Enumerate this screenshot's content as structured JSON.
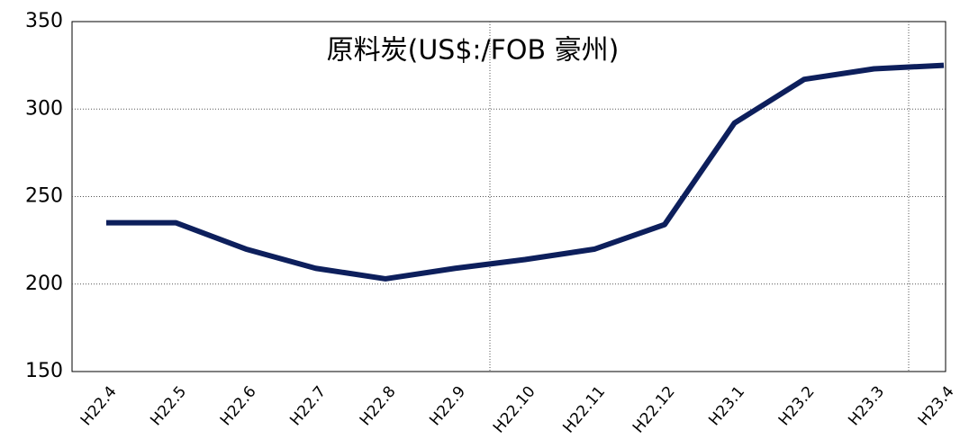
{
  "chart_data": {
    "type": "line",
    "title": "原料炭(US$:/FOB 豪州)",
    "categories": [
      "H22.4",
      "H22.5",
      "H22.6",
      "H22.7",
      "H22.8",
      "H22.9",
      "H22.10",
      "H22.11",
      "H22.12",
      "H23.1",
      "H23.2",
      "H23.3",
      "H23.4"
    ],
    "series": [
      {
        "color": "#0d1f5c",
        "values": [
          235,
          235,
          220,
          209,
          203,
          209,
          214,
          220,
          234,
          292,
          317,
          323,
          325
        ]
      }
    ],
    "ylim": [
      150,
      350
    ],
    "yticks": [
      150,
      200,
      250,
      300,
      350
    ],
    "grid": true
  }
}
